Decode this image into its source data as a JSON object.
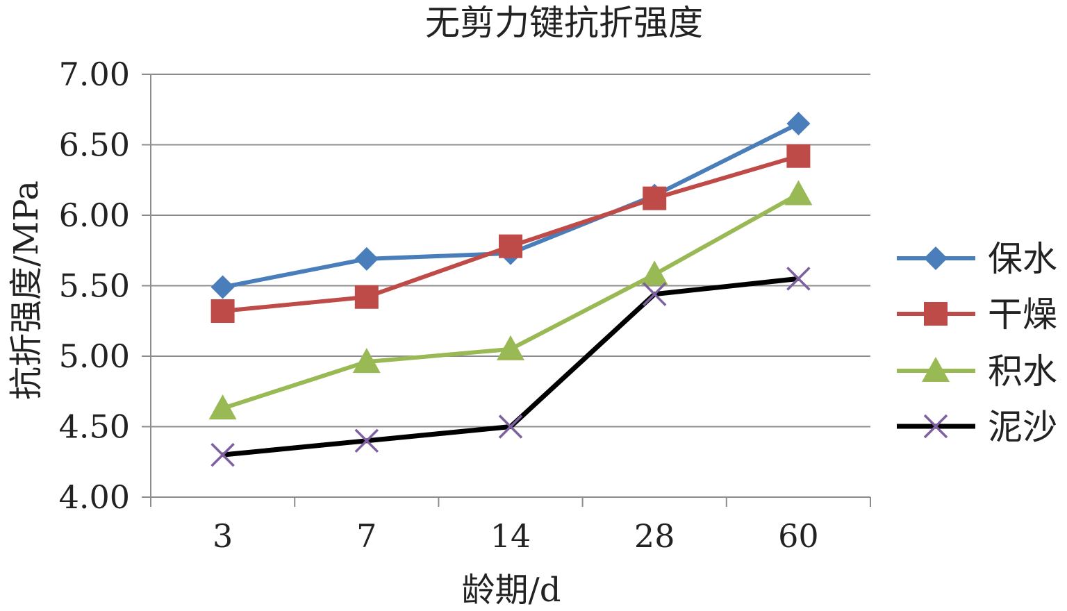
{
  "chart_data": {
    "type": "line",
    "title": "无剪力键抗折强度",
    "xlabel": "龄期/d",
    "ylabel": "抗折强度/MPa",
    "categories": [
      "3",
      "7",
      "14",
      "28",
      "60"
    ],
    "ylim": [
      4.0,
      7.0
    ],
    "yticks": [
      "4.00",
      "4.50",
      "5.00",
      "5.50",
      "6.00",
      "6.50",
      "7.00"
    ],
    "grid": true,
    "legend_position": "right",
    "series": [
      {
        "name": "保水",
        "color": "#4a7ebb",
        "marker": "diamond",
        "values": [
          5.49,
          5.69,
          5.73,
          6.14,
          6.65
        ]
      },
      {
        "name": "干燥",
        "color": "#be4b48",
        "marker": "square",
        "values": [
          5.32,
          5.42,
          5.78,
          6.12,
          6.42
        ]
      },
      {
        "name": "积水",
        "color": "#98b954",
        "marker": "triangle",
        "values": [
          4.63,
          4.96,
          5.05,
          5.58,
          6.15
        ]
      },
      {
        "name": "泥沙",
        "color": "#000000",
        "marker": "x",
        "marker_color": "#7d60a0",
        "values": [
          4.3,
          4.4,
          4.5,
          5.44,
          5.55
        ]
      }
    ]
  }
}
